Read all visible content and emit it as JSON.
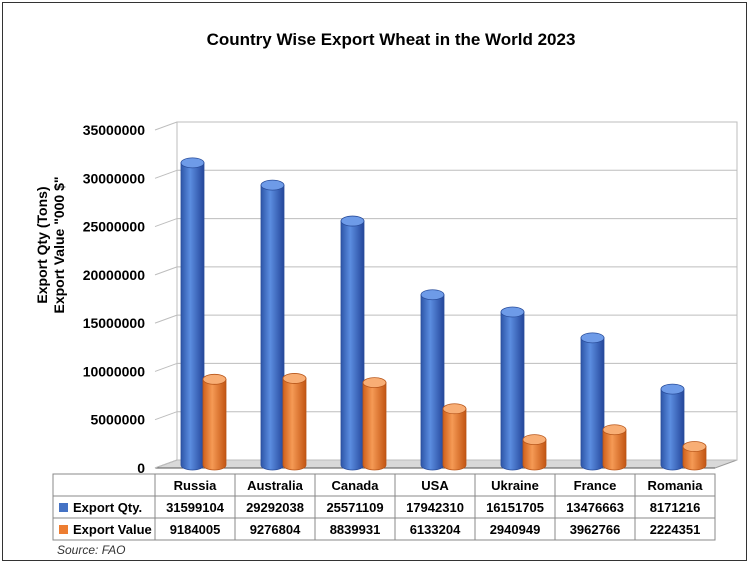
{
  "chart_data": {
    "type": "bar",
    "title": "Country Wise Export Wheat in the World 2023",
    "ylabel_lines": [
      "Export Qty (Tons)",
      "Export Value \"000 $\""
    ],
    "xlabel": "",
    "categories": [
      "Russia",
      "Australia",
      "Canada",
      "USA",
      "Ukraine",
      "France",
      "Romania"
    ],
    "series": [
      {
        "name": "Export Qty.",
        "color": "#4472C4",
        "values": [
          31599104,
          29292038,
          25571109,
          17942310,
          16151705,
          13476663,
          8171216
        ]
      },
      {
        "name": "Export Value",
        "color": "#ED7D31",
        "values": [
          9184005,
          9276804,
          8839931,
          6133204,
          2940949,
          3962766,
          2224351
        ]
      }
    ],
    "ylim": [
      0,
      35000000
    ],
    "yticks": [
      0,
      5000000,
      10000000,
      15000000,
      20000000,
      25000000,
      30000000,
      35000000
    ],
    "ytick_labels": [
      "0",
      "5000000",
      "10000000",
      "15000000",
      "20000000",
      "25000000",
      "30000000",
      "35000000"
    ],
    "grid": true,
    "legend": "data-table",
    "table_rows": [
      [
        "31599104",
        "29292038",
        "25571109",
        "17942310",
        "16151705",
        "13476663",
        "8171216"
      ],
      [
        "9184005",
        "9276804",
        "8839931",
        "6133204",
        "2940949",
        "3962766",
        "2224351"
      ]
    ]
  },
  "source": "Source: FAO"
}
